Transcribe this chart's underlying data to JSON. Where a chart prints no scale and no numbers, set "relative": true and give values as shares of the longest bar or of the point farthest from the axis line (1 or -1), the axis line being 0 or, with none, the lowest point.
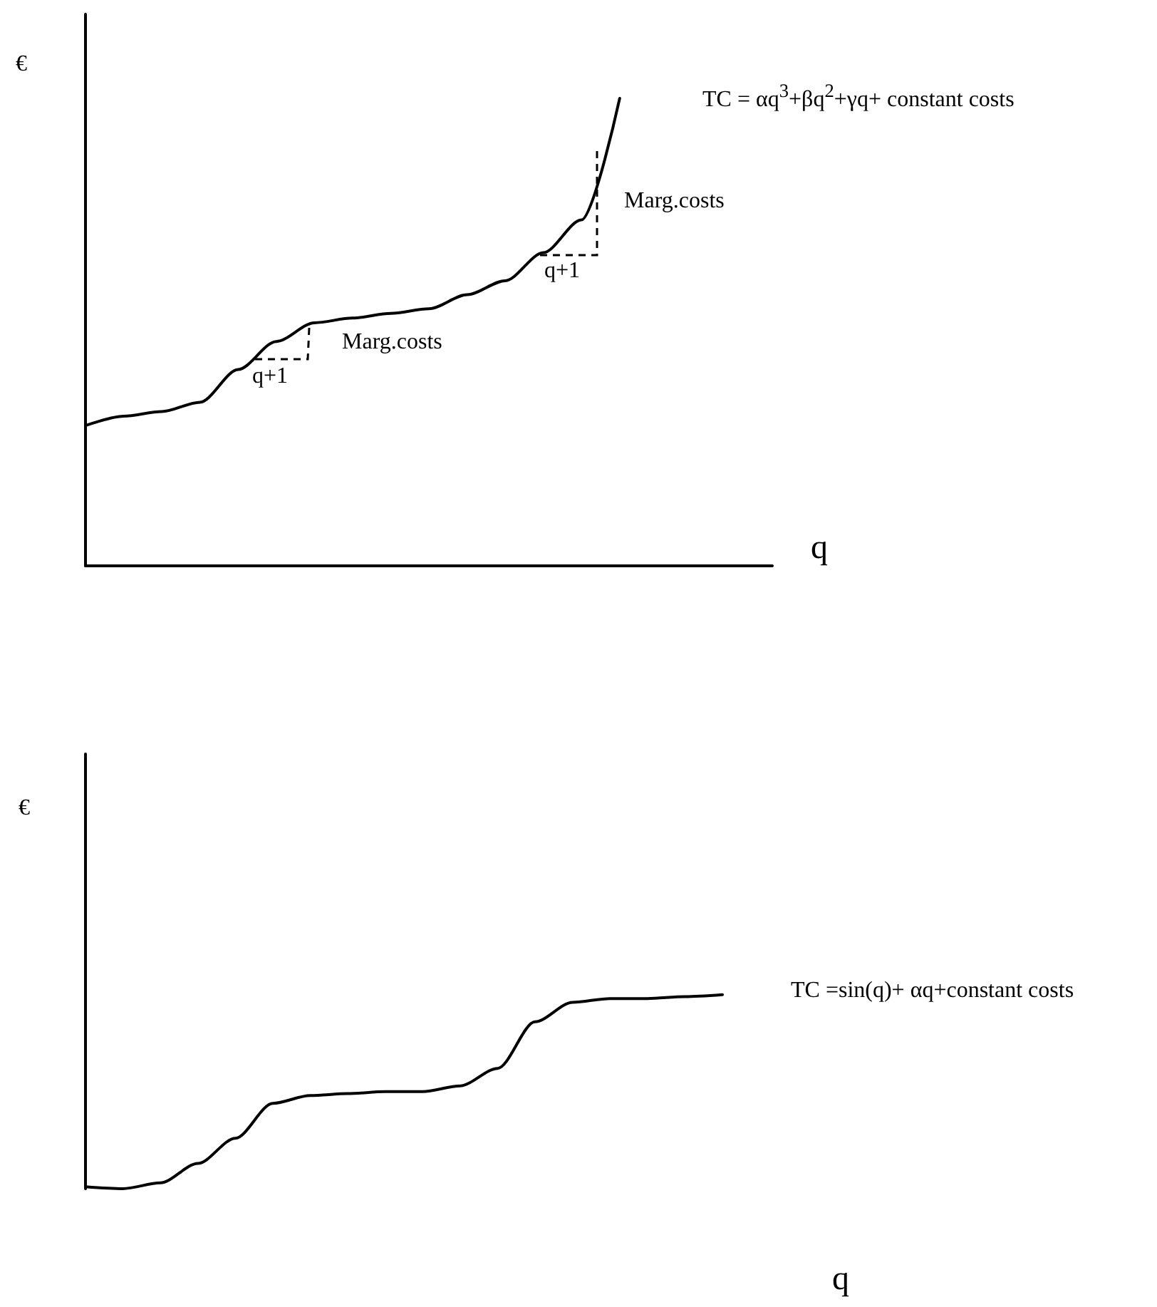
{
  "chart_data": [
    {
      "type": "line",
      "relative": true,
      "xlabel": "q",
      "ylabel": "€",
      "line_style": "solid",
      "categories": [
        null,
        null,
        null,
        null,
        null,
        null,
        null,
        null,
        null,
        null,
        null,
        null,
        null,
        null,
        null,
        null,
        null,
        null,
        null
      ],
      "series": [
        {
          "color": "#000000",
          "values": [
            0.3,
            0.32,
            0.33,
            0.35,
            0.42,
            0.48,
            0.52,
            0.53,
            0.54,
            0.55,
            0.58,
            0.61,
            0.67,
            0.74,
            1.0,
            null,
            null,
            null,
            null
          ]
        }
      ],
      "annotations": [
        "TC = αq$^{3}$+βq$^{2}$+γq+ constant costs",
        "Marg.costs",
        "q+1",
        "Marg.costs",
        "q+1"
      ]
    },
    {
      "type": "line",
      "relative": true,
      "xlabel": "q",
      "ylabel": "€",
      "line_style": "solid",
      "categories": [
        null,
        null,
        null,
        null,
        null,
        null,
        null,
        null,
        null,
        null,
        null,
        null,
        null,
        null,
        null,
        null,
        null,
        null
      ],
      "series": [
        {
          "color": "#000000",
          "values": [
            0.01,
            0.0,
            0.03,
            0.13,
            0.26,
            0.44,
            0.48,
            0.49,
            0.5,
            0.5,
            0.53,
            0.62,
            0.86,
            0.96,
            0.98,
            0.98,
            0.99,
            1.0
          ]
        }
      ],
      "annotations": [
        "TC =sin(q)+ αq+constant costs"
      ]
    }
  ]
}
